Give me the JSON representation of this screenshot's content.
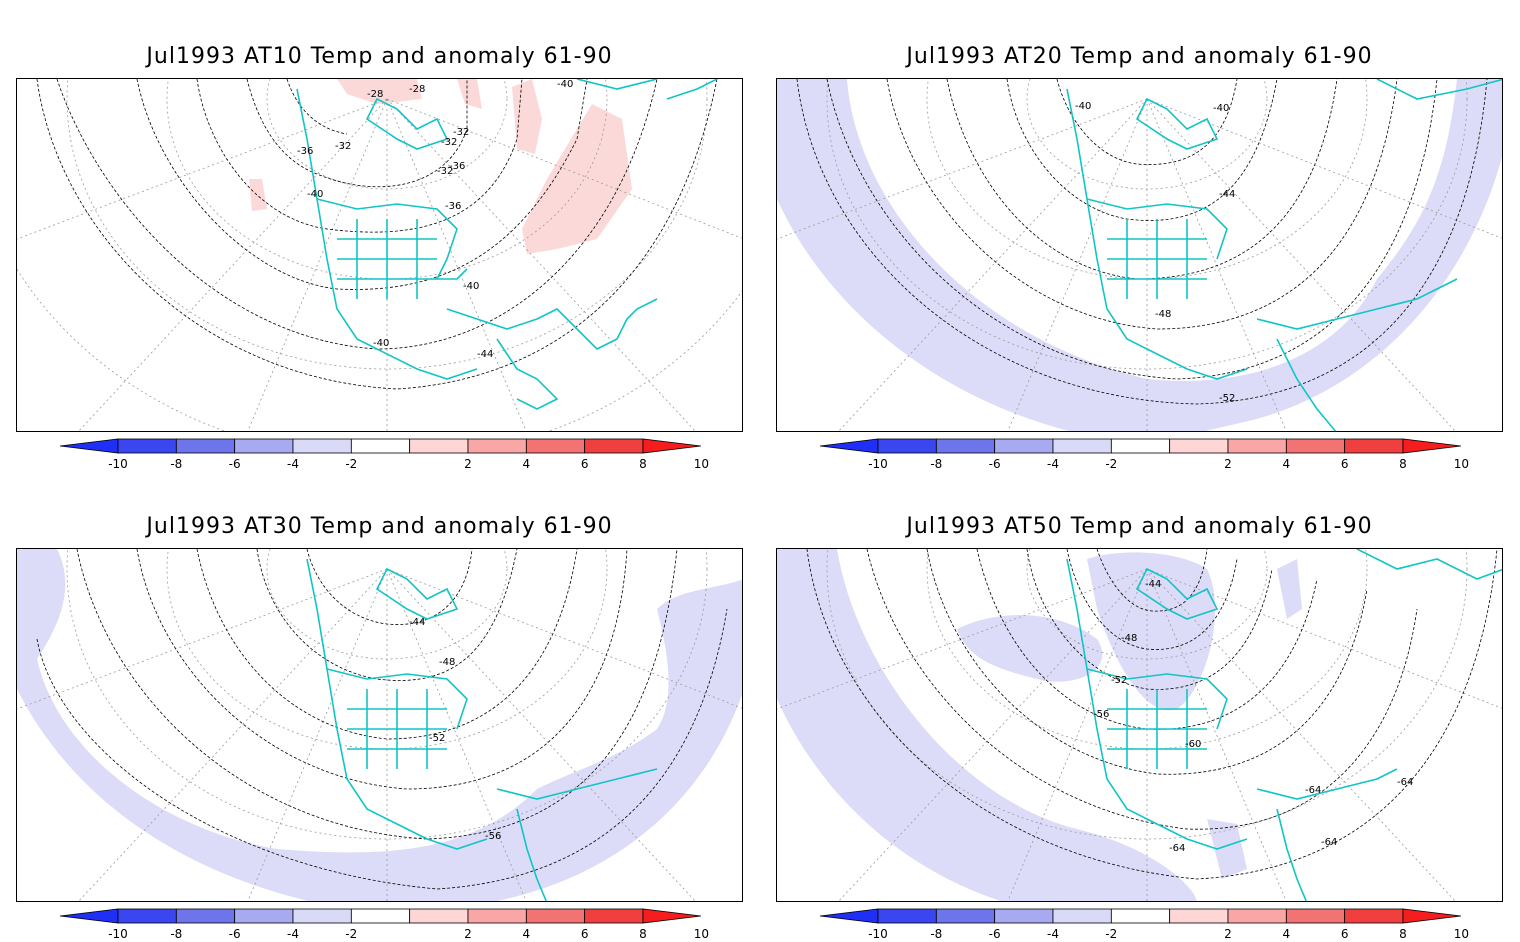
{
  "panels": [
    {
      "title": "Jul1993 AT10 Temp and anomaly 61-90",
      "contour_labels": [
        "-28",
        "-28",
        "-40",
        "-32",
        "-32",
        "-32",
        "-36",
        "-32",
        "-36",
        "-40",
        "-36",
        "-40",
        "-40",
        "-44"
      ]
    },
    {
      "title": "Jul1993 AT20 Temp and anomaly 61-90",
      "contour_labels": [
        "-40",
        "-40",
        "-44",
        "-48",
        "-52"
      ]
    },
    {
      "title": "Jul1993 AT30 Temp and anomaly 61-90",
      "contour_labels": [
        "-44",
        "-48",
        "-52",
        "-56"
      ]
    },
    {
      "title": "Jul1993 AT50 Temp and anomaly 61-90",
      "contour_labels": [
        "-44",
        "-48",
        "-52",
        "-56",
        "-60",
        "-64",
        "-64",
        "-64",
        "-64"
      ]
    }
  ],
  "colorbar": {
    "labels": [
      "-10",
      "-8",
      "-6",
      "-4",
      "-2",
      "2",
      "4",
      "6",
      "8",
      "10"
    ],
    "colors": [
      "#1f2ff5",
      "#3a46f0",
      "#6e75ea",
      "#a7aaf0",
      "#d9daf8",
      "#ffffff",
      "#ffd6d6",
      "#f8a6a6",
      "#f27373",
      "#ef3f3f",
      "#f51d1d"
    ]
  },
  "legend_colors": {
    "coast": "#11c5c5",
    "contour": "#000000",
    "grid": "#9a9a9a",
    "neg_anom": "#dcdcf8",
    "pos_anom": "#fcd9d9"
  }
}
